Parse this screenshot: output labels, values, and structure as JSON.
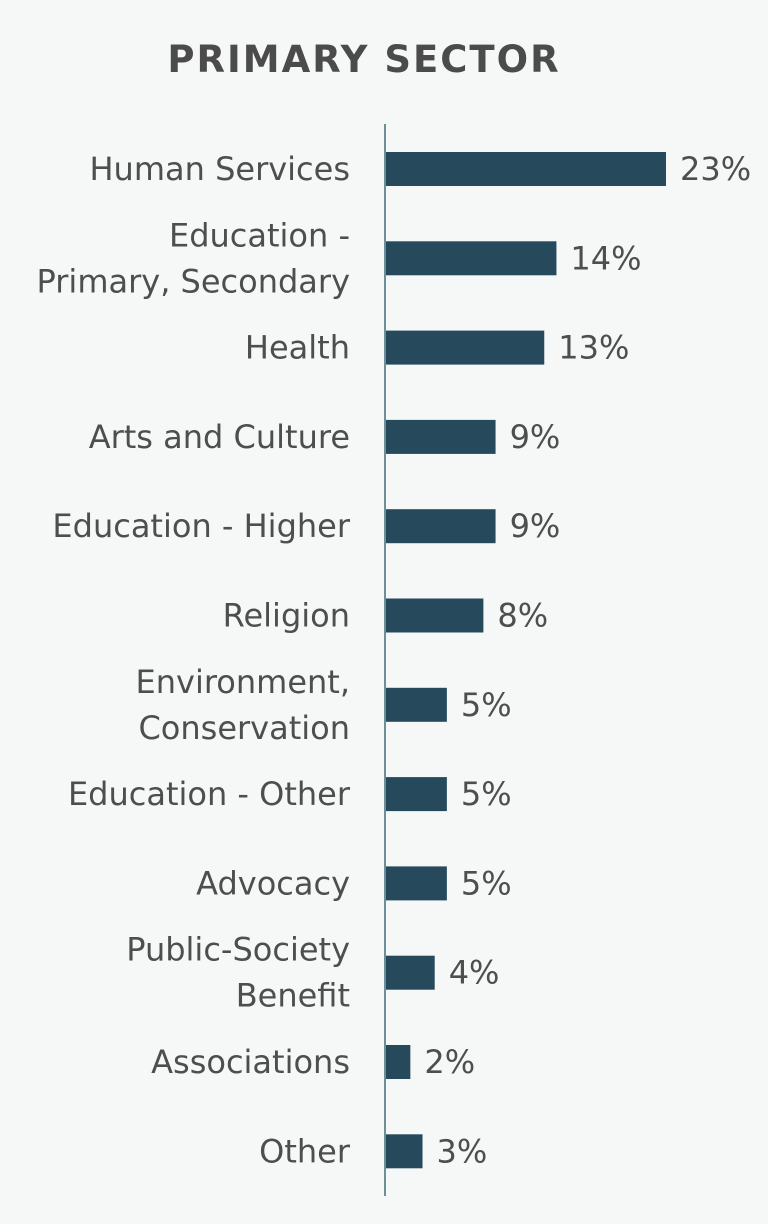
{
  "chart_data": {
    "type": "bar",
    "orientation": "horizontal",
    "title": "PRIMARY SECTOR",
    "categories": [
      "Human Services",
      "Education - Primary, Secondary",
      "Health",
      "Arts and Culture",
      "Education - Higher",
      "Religion",
      "Environment, Conservation",
      "Education - Other",
      "Advocacy",
      "Public-Society Benefit",
      "Associations",
      "Other"
    ],
    "category_lines": [
      [
        "Human Services"
      ],
      [
        "Education -",
        "Primary, Secondary"
      ],
      [
        "Health"
      ],
      [
        "Arts and Culture"
      ],
      [
        "Education - Higher"
      ],
      [
        "Religion"
      ],
      [
        "Environment,",
        "Conservation"
      ],
      [
        "Education - Other"
      ],
      [
        "Advocacy"
      ],
      [
        "Public-Society",
        "Benefit"
      ],
      [
        "Associations"
      ],
      [
        "Other"
      ]
    ],
    "values": [
      23,
      14,
      13,
      9,
      9,
      8,
      5,
      5,
      5,
      4,
      2,
      3
    ],
    "data_labels": [
      "23%",
      "14%",
      "13%",
      "9%",
      "9%",
      "8%",
      "5%",
      "5%",
      "5%",
      "4%",
      "2%",
      "3%"
    ],
    "unit": "%",
    "xlim": [
      0,
      23
    ],
    "grid": false,
    "legend": "none",
    "colors": {
      "bar": "#27495c",
      "axis": "#6f8f98",
      "text": "#4e4e4e",
      "title": "#4b4b4b",
      "background": "#f6f8f8"
    }
  }
}
